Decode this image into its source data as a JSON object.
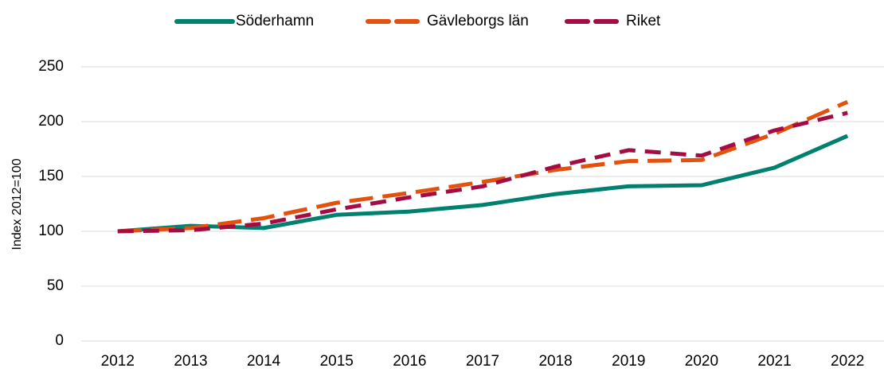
{
  "chart_data": {
    "type": "line",
    "y_label": "Index 2012=100",
    "categories": [
      "2012",
      "2013",
      "2014",
      "2015",
      "2016",
      "2017",
      "2018",
      "2019",
      "2020",
      "2021",
      "2022"
    ],
    "series": [
      {
        "name": "Söderhamn",
        "color": "#00806e",
        "dash": "solid",
        "values": [
          100,
          105,
          103,
          115,
          118,
          124,
          134,
          141,
          142,
          158,
          187
        ]
      },
      {
        "name": "Gävleborgs län",
        "color": "#e2520e",
        "dash": "long",
        "values": [
          100,
          103,
          112,
          126,
          135,
          145,
          156,
          164,
          165,
          189,
          218
        ]
      },
      {
        "name": "Riket",
        "color": "#a50c44",
        "dash": "medium",
        "values": [
          100,
          101,
          107,
          120,
          131,
          141,
          159,
          174,
          169,
          192,
          208
        ]
      }
    ],
    "ylim": [
      0,
      250
    ],
    "yticks": [
      0,
      50,
      100,
      150,
      200,
      250
    ],
    "grid": true,
    "legend": "top"
  }
}
